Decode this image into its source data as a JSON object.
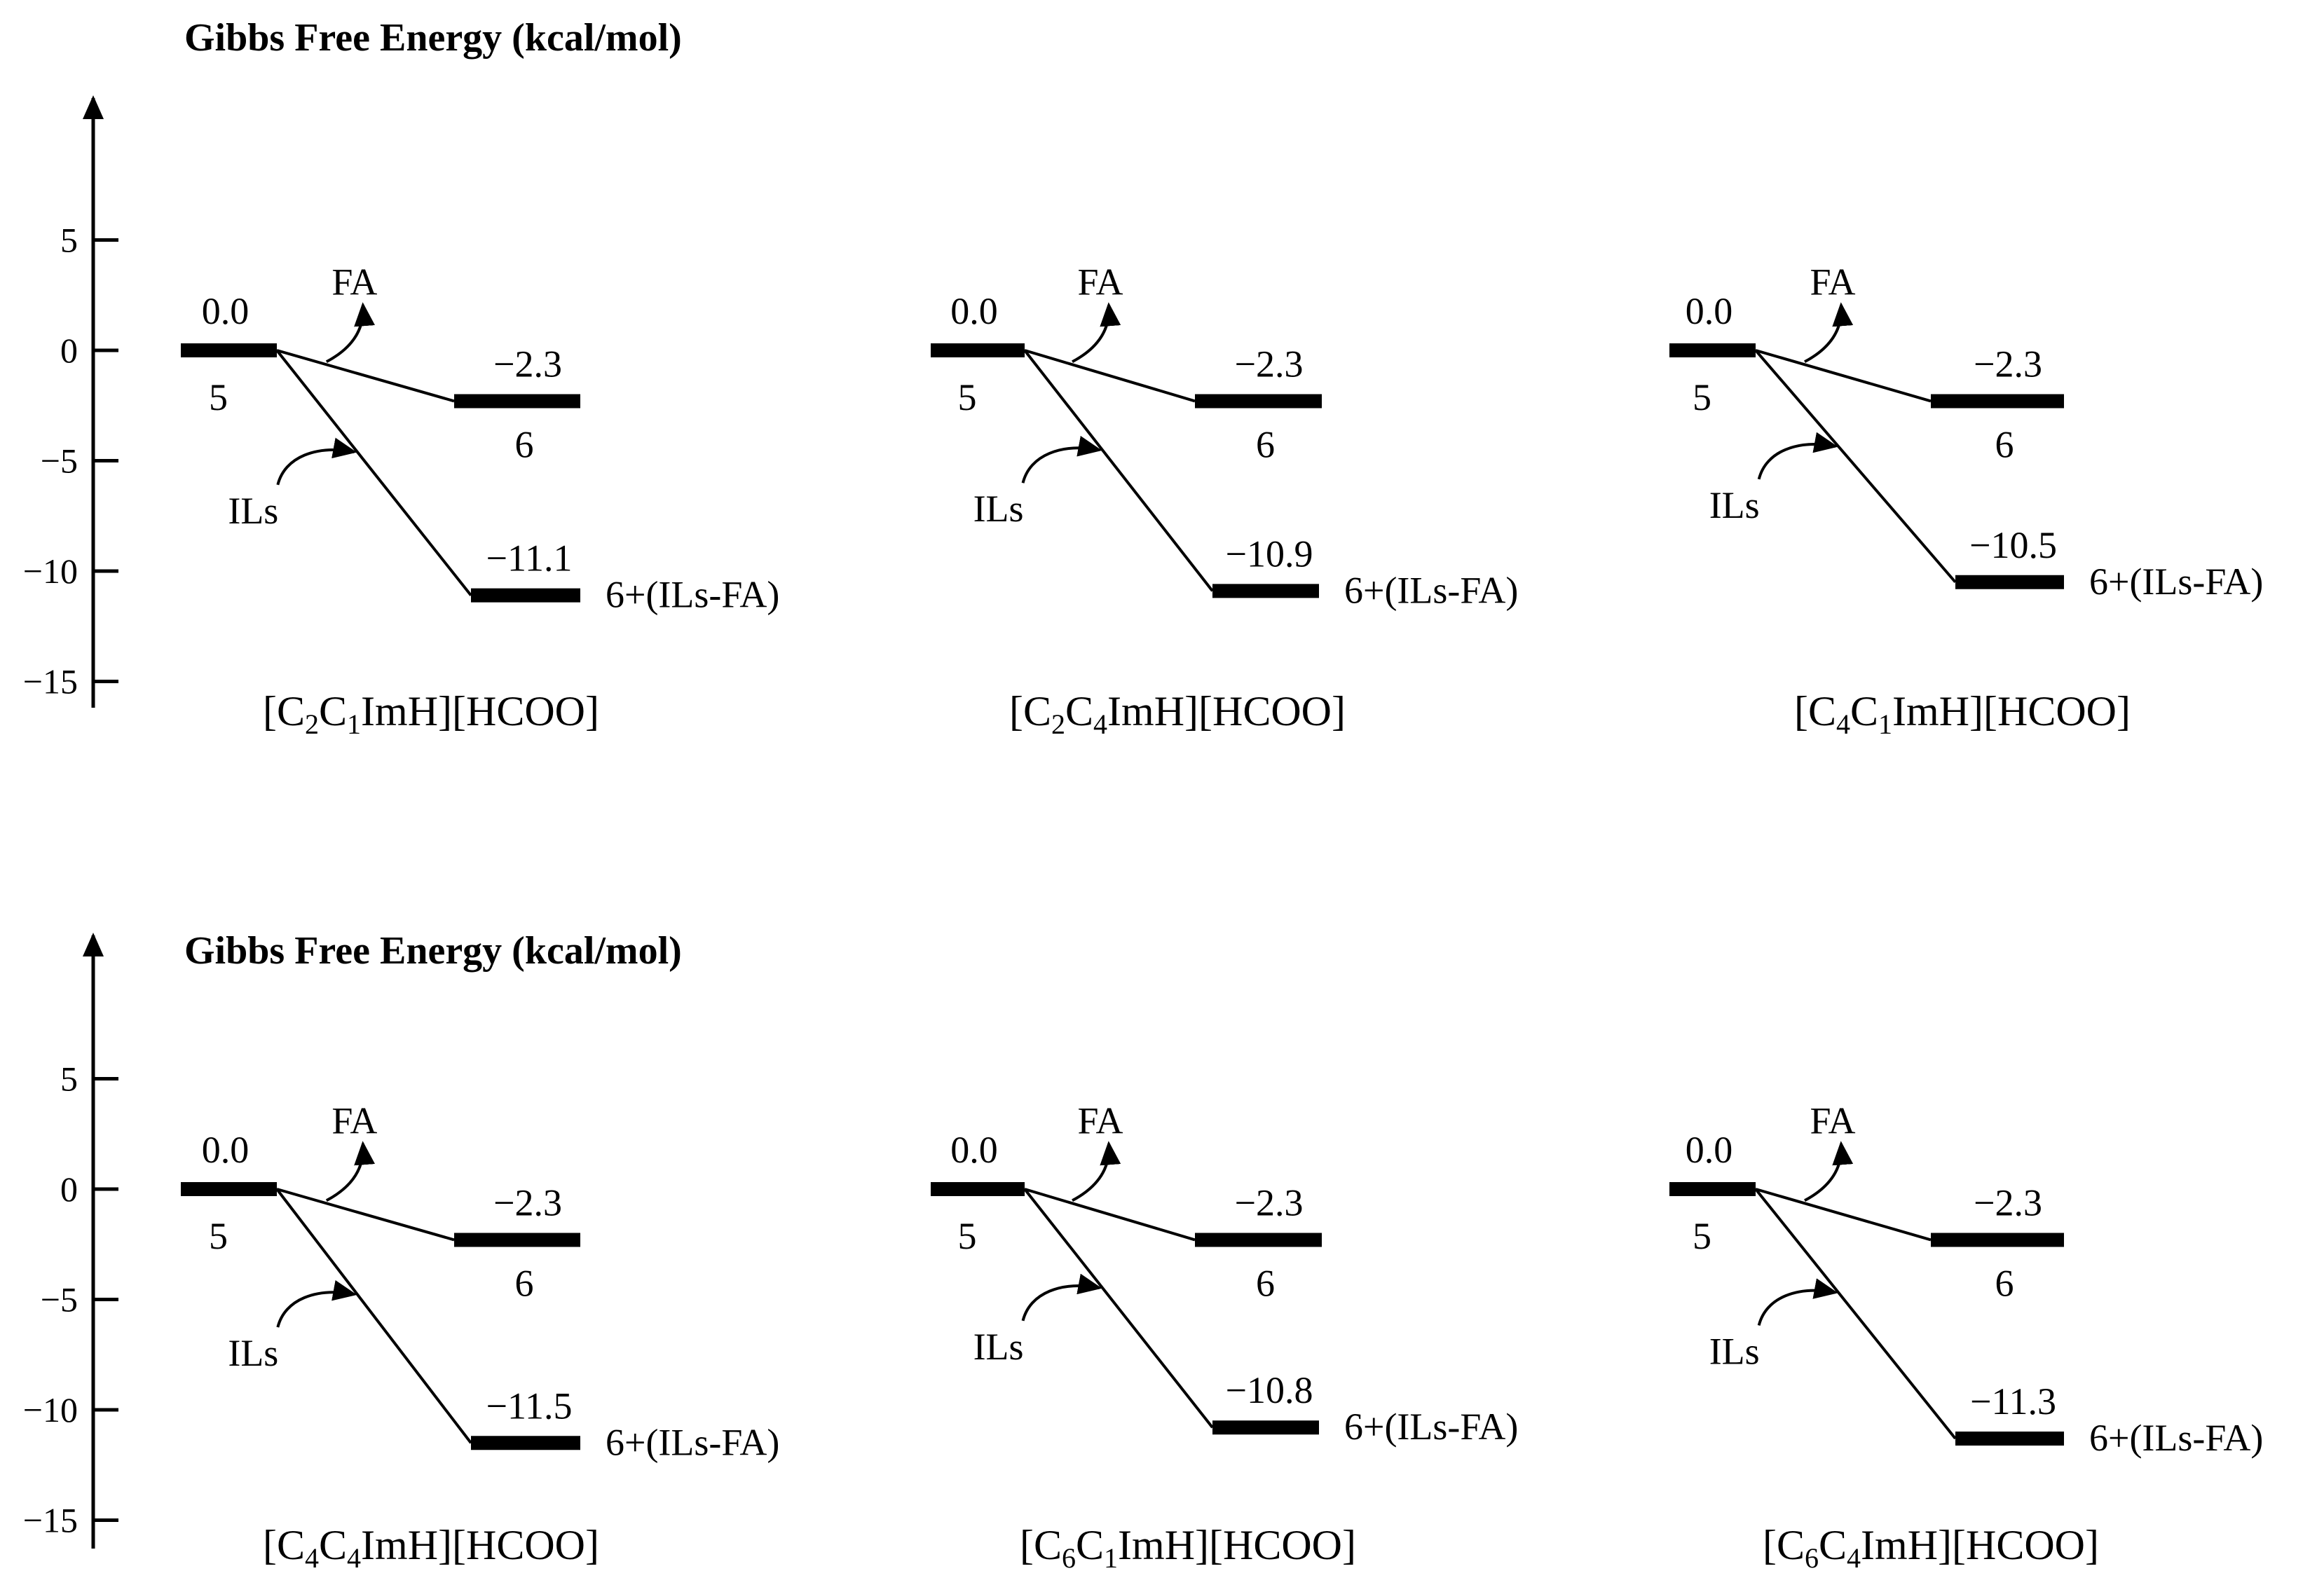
{
  "panel_rows": [
    {
      "axis": {
        "title": "Gibbs Free Energy (kcal/mol)",
        "ticks": [
          5,
          0,
          -5,
          -10,
          -15
        ],
        "tick_labels": [
          "5",
          "0",
          "−5",
          "−10",
          "−15"
        ]
      },
      "systems": [
        {
          "name_parts": [
            {
              "t": "[C"
            },
            {
              "t": "2",
              "sub": true
            },
            {
              "t": "C"
            },
            {
              "t": "1",
              "sub": true
            },
            {
              "t": "ImH][HCOO]"
            }
          ],
          "levels": {
            "start": 0.0,
            "mid": -2.3,
            "final": -11.1
          },
          "labels": {
            "start": "0.0",
            "mid": "−2.3",
            "final": "−11.1",
            "start_state": "5",
            "mid_state": "6",
            "final_state": "6+(ILs-FA)",
            "fa": "FA",
            "ils": "ILs"
          }
        },
        {
          "name_parts": [
            {
              "t": "[C"
            },
            {
              "t": "2",
              "sub": true
            },
            {
              "t": "C"
            },
            {
              "t": "4",
              "sub": true
            },
            {
              "t": "ImH][HCOO]"
            }
          ],
          "levels": {
            "start": 0.0,
            "mid": -2.3,
            "final": -10.9
          },
          "labels": {
            "start": "0.0",
            "mid": "−2.3",
            "final": "−10.9",
            "start_state": "5",
            "mid_state": "6",
            "final_state": "6+(ILs-FA)",
            "fa": "FA",
            "ils": "ILs"
          }
        },
        {
          "name_parts": [
            {
              "t": "[C"
            },
            {
              "t": "4",
              "sub": true
            },
            {
              "t": "C"
            },
            {
              "t": "1",
              "sub": true
            },
            {
              "t": "ImH][HCOO]"
            }
          ],
          "levels": {
            "start": 0.0,
            "mid": -2.3,
            "final": -10.5
          },
          "labels": {
            "start": "0.0",
            "mid": "−2.3",
            "final": "−10.5",
            "start_state": "5",
            "mid_state": "6",
            "final_state": "6+(ILs-FA)",
            "fa": "FA",
            "ils": "ILs"
          }
        }
      ]
    },
    {
      "axis": {
        "title": "Gibbs Free Energy (kcal/mol)",
        "ticks": [
          5,
          0,
          -5,
          -10,
          -15
        ],
        "tick_labels": [
          "5",
          "0",
          "−5",
          "−10",
          "−15"
        ]
      },
      "systems": [
        {
          "name_parts": [
            {
              "t": "[C"
            },
            {
              "t": "4",
              "sub": true
            },
            {
              "t": "C"
            },
            {
              "t": "4",
              "sub": true
            },
            {
              "t": "ImH][HCOO]"
            }
          ],
          "levels": {
            "start": 0.0,
            "mid": -2.3,
            "final": -11.5
          },
          "labels": {
            "start": "0.0",
            "mid": "−2.3",
            "final": "−11.5",
            "start_state": "5",
            "mid_state": "6",
            "final_state": "6+(ILs-FA)",
            "fa": "FA",
            "ils": "ILs"
          }
        },
        {
          "name_parts": [
            {
              "t": "[C"
            },
            {
              "t": "6",
              "sub": true
            },
            {
              "t": "C"
            },
            {
              "t": "1",
              "sub": true
            },
            {
              "t": "ImH][HCOO]"
            }
          ],
          "levels": {
            "start": 0.0,
            "mid": -2.3,
            "final": -10.8
          },
          "labels": {
            "start": "0.0",
            "mid": "−2.3",
            "final": "−10.8",
            "start_state": "5",
            "mid_state": "6",
            "final_state": "6+(ILs-FA)",
            "fa": "FA",
            "ils": "ILs"
          }
        },
        {
          "name_parts": [
            {
              "t": "[C"
            },
            {
              "t": "6",
              "sub": true
            },
            {
              "t": "C"
            },
            {
              "t": "4",
              "sub": true
            },
            {
              "t": "ImH][HCOO]"
            }
          ],
          "levels": {
            "start": 0.0,
            "mid": -2.3,
            "final": -11.3
          },
          "labels": {
            "start": "0.0",
            "mid": "−2.3",
            "final": "−11.3",
            "start_state": "5",
            "mid_state": "6",
            "final_state": "6+(ILs-FA)",
            "fa": "FA",
            "ils": "ILs"
          }
        }
      ]
    }
  ]
}
